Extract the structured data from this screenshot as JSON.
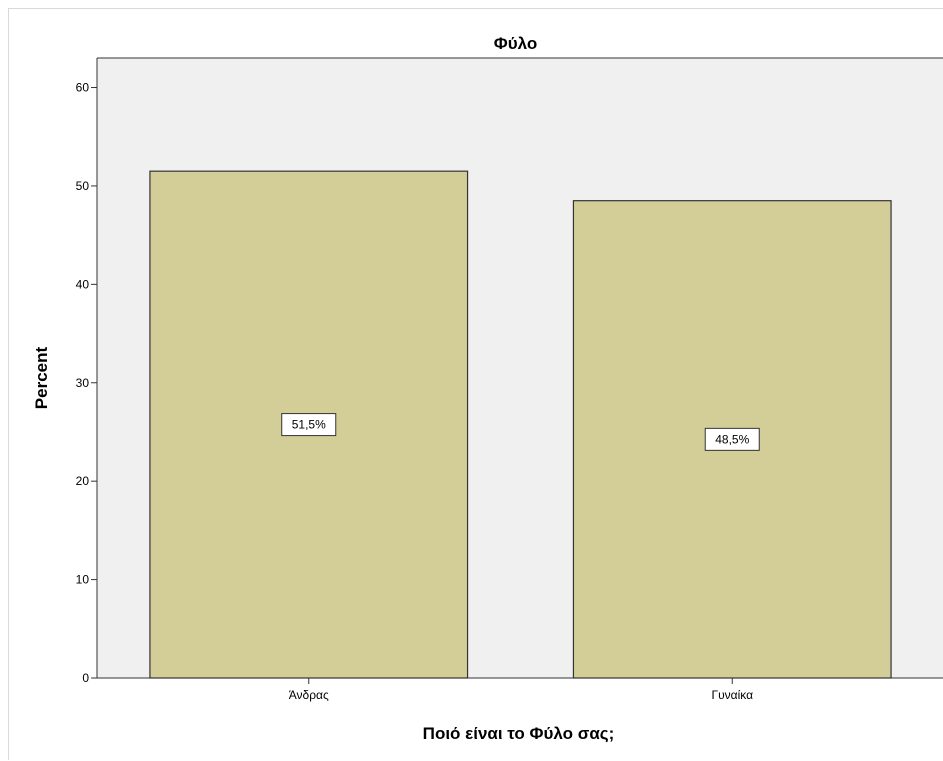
{
  "chart_data": {
    "type": "bar",
    "title": "Φύλο",
    "xlabel": "Ποιό είναι το Φύλο σας;",
    "ylabel": "Percent",
    "categories": [
      "Άνδρας",
      "Γυναίκα"
    ],
    "values": [
      51.5,
      48.5
    ],
    "data_labels": [
      "51,5%",
      "48,5%"
    ],
    "ylim": [
      0,
      63
    ],
    "yticks": [
      0,
      10,
      20,
      30,
      40,
      50,
      60
    ],
    "grid": false,
    "legend": "none",
    "colors": {
      "bar_fill": "#d3ce98",
      "bar_stroke": "#333333",
      "plot_background": "#f0f0f0",
      "axis": "#333333"
    }
  }
}
